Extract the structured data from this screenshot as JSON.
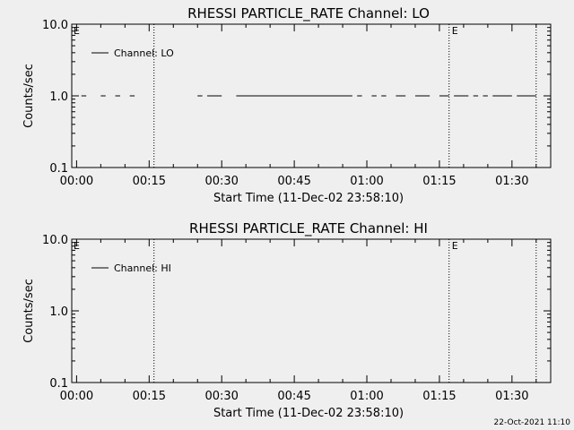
{
  "footer": {
    "timestamp": "22-Oct-2021 11:10"
  },
  "chart_data": [
    {
      "type": "line",
      "title": "RHESSI PARTICLE_RATE Channel: LO",
      "xlabel": "Start Time (11-Dec-02 23:58:10)",
      "ylabel": "Counts/sec",
      "yscale": "log",
      "ylim": [
        0.1,
        10.0
      ],
      "ytick_labels": [
        "0.1",
        "1.0",
        "10.0"
      ],
      "xrange_minutes_after_start": [
        0,
        98
      ],
      "xtick_labels": [
        "00:00",
        "00:15",
        "00:30",
        "00:45",
        "01:00",
        "01:15",
        "01:30"
      ],
      "legend": {
        "placement": "top-left",
        "entries": [
          "Channel: LO"
        ]
      },
      "event_markers": [
        {
          "time": "00:16",
          "label": ""
        },
        {
          "time": "01:17",
          "label": "E"
        },
        {
          "time": "01:35",
          "label": ""
        }
      ],
      "corner_label": "E",
      "series": [
        {
          "name": "Channel: LO",
          "value": 1.0,
          "segments": [
            [
              "23:59",
              "00:00"
            ],
            [
              "00:01",
              "00:02"
            ],
            [
              "00:05",
              "00:06"
            ],
            [
              "00:08",
              "00:09"
            ],
            [
              "00:11",
              "00:12"
            ],
            [
              "00:25",
              "00:26"
            ],
            [
              "00:27",
              "00:30"
            ],
            [
              "00:33",
              "00:57"
            ],
            [
              "00:58",
              "00:59"
            ],
            [
              "01:01",
              "01:02"
            ],
            [
              "01:03",
              "01:04"
            ],
            [
              "01:06",
              "01:08"
            ],
            [
              "01:10",
              "01:13"
            ],
            [
              "01:15",
              "01:17"
            ],
            [
              "01:18",
              "01:21"
            ],
            [
              "01:22",
              "01:23"
            ],
            [
              "01:24",
              "01:25"
            ],
            [
              "01:26",
              "01:30"
            ],
            [
              "01:31",
              "01:35"
            ]
          ]
        }
      ]
    },
    {
      "type": "line",
      "title": "RHESSI PARTICLE_RATE Channel: HI",
      "xlabel": "Start Time (11-Dec-02 23:58:10)",
      "ylabel": "Counts/sec",
      "yscale": "log",
      "ylim": [
        0.1,
        10.0
      ],
      "ytick_labels": [
        "0.1",
        "1.0",
        "10.0"
      ],
      "xrange_minutes_after_start": [
        0,
        98
      ],
      "xtick_labels": [
        "00:00",
        "00:15",
        "00:30",
        "00:45",
        "01:00",
        "01:15",
        "01:30"
      ],
      "legend": {
        "placement": "top-left",
        "entries": [
          "Channel: HI"
        ]
      },
      "event_markers": [
        {
          "time": "00:16",
          "label": ""
        },
        {
          "time": "01:17",
          "label": "E"
        },
        {
          "time": "01:35",
          "label": ""
        }
      ],
      "corner_label": "E",
      "series": [
        {
          "name": "Channel: HI",
          "value": null,
          "segments": []
        }
      ]
    }
  ]
}
